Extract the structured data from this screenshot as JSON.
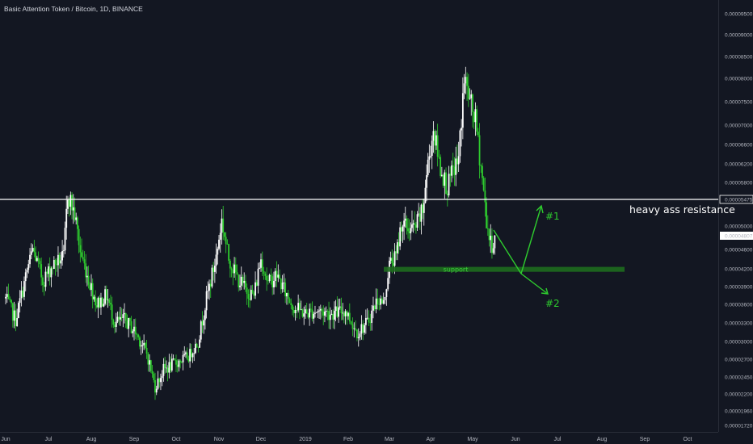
{
  "header": {
    "title": "Basic Attention Token / Bitcoin, 1D, BINANCE"
  },
  "colors": {
    "background": "#131722",
    "candle": "#ffffff",
    "accent": "#2ecc2e",
    "support_zone": "#1e6b1e"
  },
  "chart_data": {
    "type": "candlestick",
    "title": "Basic Attention Token / Bitcoin, 1D, BINANCE",
    "x_ticks": [
      "Jun",
      "Jul",
      "Aug",
      "Sep",
      "Oct",
      "Nov",
      "Dec",
      "2019",
      "Feb",
      "Mar",
      "Apr",
      "May",
      "Jun",
      "Jul",
      "Aug",
      "Sep",
      "Oct"
    ],
    "y_ticks": [
      "0.00009500",
      "0.00009000",
      "0.00008500",
      "0.00008000",
      "0.00007500",
      "0.00007000",
      "0.00006600",
      "0.00006200",
      "0.00005800",
      "0.00005475",
      "0.00005000",
      "0.00004807",
      "0.00004600",
      "0.00004200",
      "0.00003900",
      "0.00003600",
      "0.00003300",
      "0.00003000",
      "0.00002700",
      "0.00002450",
      "0.00002200",
      "0.00001960",
      "0.00001720"
    ],
    "ylim": [
      1.65e-05,
      9.85e-05
    ],
    "price_path": [
      {
        "date": "2018-06-01",
        "close": 3.7e-05
      },
      {
        "date": "2018-06-08",
        "close": 3.35e-05
      },
      {
        "date": "2018-06-14",
        "close": 3.95e-05
      },
      {
        "date": "2018-06-20",
        "close": 4.6e-05
      },
      {
        "date": "2018-06-27",
        "close": 4e-05
      },
      {
        "date": "2018-07-05",
        "close": 4.3e-05
      },
      {
        "date": "2018-07-12",
        "close": 4.45e-05
      },
      {
        "date": "2018-07-15",
        "close": 5.6e-05
      },
      {
        "date": "2018-07-20",
        "close": 5.2e-05
      },
      {
        "date": "2018-07-24",
        "close": 4.55e-05
      },
      {
        "date": "2018-07-29",
        "close": 4.1e-05
      },
      {
        "date": "2018-08-05",
        "close": 3.6e-05
      },
      {
        "date": "2018-08-12",
        "close": 3.75e-05
      },
      {
        "date": "2018-08-18",
        "close": 3.3e-05
      },
      {
        "date": "2018-08-25",
        "close": 3.35e-05
      },
      {
        "date": "2018-09-02",
        "close": 3.15e-05
      },
      {
        "date": "2018-09-10",
        "close": 2.8e-05
      },
      {
        "date": "2018-09-16",
        "close": 2.3e-05
      },
      {
        "date": "2018-09-22",
        "close": 2.55e-05
      },
      {
        "date": "2018-10-01",
        "close": 2.65e-05
      },
      {
        "date": "2018-10-10",
        "close": 2.75e-05
      },
      {
        "date": "2018-10-17",
        "close": 3e-05
      },
      {
        "date": "2018-10-23",
        "close": 3.7e-05
      },
      {
        "date": "2018-10-29",
        "close": 4.3e-05
      },
      {
        "date": "2018-11-03",
        "close": 5.1e-05
      },
      {
        "date": "2018-11-08",
        "close": 4.4e-05
      },
      {
        "date": "2018-11-14",
        "close": 4.05e-05
      },
      {
        "date": "2018-11-20",
        "close": 3.85e-05
      },
      {
        "date": "2018-11-26",
        "close": 3.75e-05
      },
      {
        "date": "2018-12-01",
        "close": 4.4e-05
      },
      {
        "date": "2018-12-06",
        "close": 3.95e-05
      },
      {
        "date": "2018-12-12",
        "close": 4.1e-05
      },
      {
        "date": "2018-12-18",
        "close": 3.8e-05
      },
      {
        "date": "2018-12-24",
        "close": 3.55e-05
      },
      {
        "date": "2019-01-01",
        "close": 3.45e-05
      },
      {
        "date": "2019-01-10",
        "close": 3.5e-05
      },
      {
        "date": "2019-01-20",
        "close": 3.45e-05
      },
      {
        "date": "2019-01-30",
        "close": 3.5e-05
      },
      {
        "date": "2019-02-07",
        "close": 3.15e-05
      },
      {
        "date": "2019-02-14",
        "close": 3.3e-05
      },
      {
        "date": "2019-02-21",
        "close": 3.7e-05
      },
      {
        "date": "2019-02-25",
        "close": 3.6e-05
      },
      {
        "date": "2019-03-01",
        "close": 4.3e-05
      },
      {
        "date": "2019-03-06",
        "close": 4.45e-05
      },
      {
        "date": "2019-03-10",
        "close": 5.05e-05
      },
      {
        "date": "2019-03-15",
        "close": 4.95e-05
      },
      {
        "date": "2019-03-20",
        "close": 4.95e-05
      },
      {
        "date": "2019-03-26",
        "close": 5.25e-05
      },
      {
        "date": "2019-03-30",
        "close": 6.2e-05
      },
      {
        "date": "2019-04-03",
        "close": 6.9e-05
      },
      {
        "date": "2019-04-08",
        "close": 6.1e-05
      },
      {
        "date": "2019-04-13",
        "close": 5.7e-05
      },
      {
        "date": "2019-04-17",
        "close": 6.05e-05
      },
      {
        "date": "2019-04-21",
        "close": 6.3e-05
      },
      {
        "date": "2019-04-25",
        "close": 8e-05
      },
      {
        "date": "2019-04-29",
        "close": 7.5e-05
      },
      {
        "date": "2019-05-03",
        "close": 7.1e-05
      },
      {
        "date": "2019-05-07",
        "close": 6.15e-05
      },
      {
        "date": "2019-05-11",
        "close": 5.1e-05
      },
      {
        "date": "2019-05-14",
        "close": 4.65e-05
      },
      {
        "date": "2019-05-17",
        "close": 4.75e-05
      }
    ],
    "resistance_level": 5.475e-05,
    "last_price": 4.807e-05,
    "support_zone": [
      4.15e-05,
      4.24e-05
    ],
    "annotations": {
      "resistance_label": "heavy ass resistance",
      "support_label": "support",
      "scenario1_label": "#1",
      "scenario2_label": "#2"
    }
  }
}
